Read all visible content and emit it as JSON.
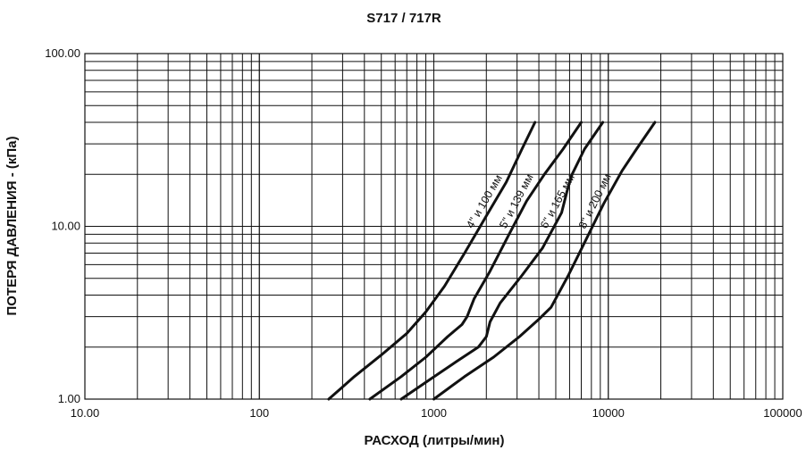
{
  "chart_data": {
    "type": "line",
    "title": "S717 / 717R",
    "xlabel": "РАСХОД (литры/мин)",
    "ylabel": "ПОТЕРЯ ДАВЛЕНИЯ - (кПа)",
    "x_scale": "log",
    "y_scale": "log",
    "xlim": [
      10,
      100000
    ],
    "ylim": [
      1,
      100
    ],
    "grid": true,
    "x_tick_labels": [
      "10.00",
      "100",
      "1000",
      "10000",
      "100000"
    ],
    "y_tick_labels": [
      "1.00",
      "10.00",
      "100.00"
    ],
    "series": [
      {
        "name": "4\" и 100 мм",
        "x": [
          250,
          350,
          500,
          700,
          900,
          1150,
          1500,
          2000,
          2600,
          3200,
          3800
        ],
        "y": [
          1.0,
          1.35,
          1.8,
          2.4,
          3.2,
          4.5,
          7.0,
          11.5,
          18,
          28,
          40
        ]
      },
      {
        "name": "5\" и 139 мм",
        "x": [
          430,
          650,
          900,
          1200,
          1450,
          1550,
          1700,
          2100,
          2700,
          3400,
          4300,
          5500,
          7000
        ],
        "y": [
          1.0,
          1.35,
          1.75,
          2.3,
          2.7,
          3.0,
          3.8,
          5.5,
          9.0,
          14,
          20,
          28,
          40
        ]
      },
      {
        "name": "6\" и 165 мм",
        "x": [
          650,
          950,
          1350,
          1800,
          2000,
          2100,
          2400,
          3200,
          4200,
          5400,
          5800,
          6200,
          7300,
          9300
        ],
        "y": [
          1.0,
          1.3,
          1.65,
          2.0,
          2.3,
          2.8,
          3.6,
          5.2,
          7.5,
          12,
          16,
          20,
          28,
          40
        ]
      },
      {
        "name": "8\" и 200 мм",
        "x": [
          1000,
          1500,
          2200,
          3100,
          4000,
          4700,
          5900,
          7500,
          9400,
          12000,
          14500,
          18500
        ],
        "y": [
          1.0,
          1.35,
          1.75,
          2.3,
          2.9,
          3.4,
          5.2,
          8.5,
          13.5,
          21,
          28,
          40
        ]
      }
    ]
  }
}
